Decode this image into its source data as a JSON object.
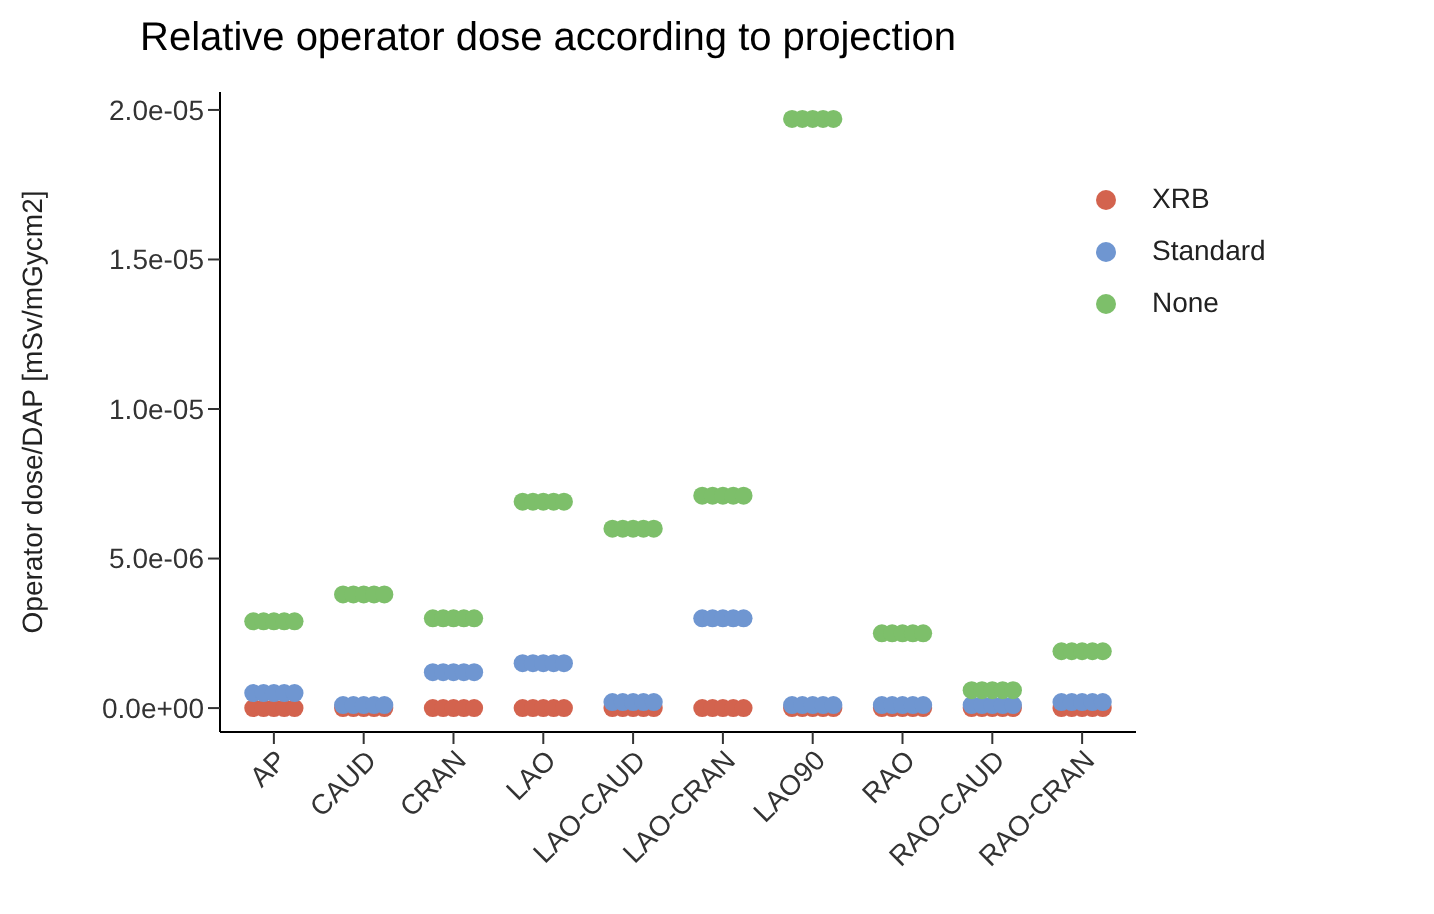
{
  "chart_data": {
    "type": "scatter",
    "title": "Relative operator dose according to projection",
    "ylabel": "Operator dose/DAP  [mSv/mGycm2]",
    "categories": [
      "AP",
      "CAUD",
      "CRAN",
      "LAO",
      "LAO-CAUD",
      "LAO-CRAN",
      "LAO90",
      "RAO",
      "RAO-CAUD",
      "RAO-CRAN"
    ],
    "ylim": [
      -8e-07,
      2.06e-05
    ],
    "yticks": [
      {
        "value": 0,
        "label": "0.0e+00"
      },
      {
        "value": 5e-06,
        "label": "5.0e-06"
      },
      {
        "value": 1e-05,
        "label": "1.0e-05"
      },
      {
        "value": 1.5e-05,
        "label": "1.5e-05"
      },
      {
        "value": 2e-05,
        "label": "2.0e-05"
      }
    ],
    "grid": false,
    "legend": "top right",
    "marker": "circle",
    "series": [
      {
        "name": "XRB",
        "color": "#d3634e",
        "x": [
          "AP",
          "AP",
          "AP",
          "AP",
          "AP",
          "CAUD",
          "CAUD",
          "CAUD",
          "CAUD",
          "CAUD",
          "CRAN",
          "CRAN",
          "CRAN",
          "CRAN",
          "CRAN",
          "LAO",
          "LAO",
          "LAO",
          "LAO",
          "LAO",
          "LAO-CAUD",
          "LAO-CAUD",
          "LAO-CAUD",
          "LAO-CAUD",
          "LAO-CAUD",
          "LAO-CRAN",
          "LAO-CRAN",
          "LAO-CRAN",
          "LAO-CRAN",
          "LAO-CRAN",
          "LAO90",
          "LAO90",
          "LAO90",
          "LAO90",
          "LAO90",
          "RAO",
          "RAO",
          "RAO",
          "RAO",
          "RAO",
          "RAO-CAUD",
          "RAO-CAUD",
          "RAO-CAUD",
          "RAO-CAUD",
          "RAO-CAUD",
          "RAO-CRAN",
          "RAO-CRAN",
          "RAO-CRAN",
          "RAO-CRAN",
          "RAO-CRAN"
        ],
        "values": [
          0,
          0,
          0,
          0,
          0,
          0,
          0,
          0,
          0,
          0,
          0,
          0,
          0,
          0,
          0,
          0,
          0,
          0,
          0,
          0,
          0,
          0,
          0,
          0,
          0,
          0,
          0,
          0,
          0,
          0,
          0,
          0,
          0,
          0,
          0,
          0,
          0,
          0,
          0,
          0,
          0,
          0,
          0,
          0,
          0,
          0,
          0,
          0,
          0,
          0
        ]
      },
      {
        "name": "Standard",
        "color": "#6f96d1",
        "x": [
          "AP",
          "AP",
          "AP",
          "AP",
          "AP",
          "CAUD",
          "CAUD",
          "CAUD",
          "CAUD",
          "CAUD",
          "CRAN",
          "CRAN",
          "CRAN",
          "CRAN",
          "CRAN",
          "LAO",
          "LAO",
          "LAO",
          "LAO",
          "LAO",
          "LAO-CAUD",
          "LAO-CAUD",
          "LAO-CAUD",
          "LAO-CAUD",
          "LAO-CAUD",
          "LAO-CRAN",
          "LAO-CRAN",
          "LAO-CRAN",
          "LAO-CRAN",
          "LAO-CRAN",
          "LAO90",
          "LAO90",
          "LAO90",
          "LAO90",
          "LAO90",
          "RAO",
          "RAO",
          "RAO",
          "RAO",
          "RAO",
          "RAO-CAUD",
          "RAO-CAUD",
          "RAO-CAUD",
          "RAO-CAUD",
          "RAO-CAUD",
          "RAO-CRAN",
          "RAO-CRAN",
          "RAO-CRAN",
          "RAO-CRAN",
          "RAO-CRAN"
        ],
        "values": [
          5e-07,
          5e-07,
          5e-07,
          5e-07,
          5e-07,
          1e-07,
          1e-07,
          1e-07,
          1e-07,
          1e-07,
          1.2e-06,
          1.2e-06,
          1.2e-06,
          1.2e-06,
          1.2e-06,
          1.5e-06,
          1.5e-06,
          1.5e-06,
          1.5e-06,
          1.5e-06,
          2e-07,
          2e-07,
          2e-07,
          2e-07,
          2e-07,
          3e-06,
          3e-06,
          3e-06,
          3e-06,
          3e-06,
          1e-07,
          1e-07,
          1e-07,
          1e-07,
          1e-07,
          1e-07,
          1e-07,
          1e-07,
          1e-07,
          1e-07,
          1e-07,
          1e-07,
          1e-07,
          1e-07,
          1e-07,
          2e-07,
          2e-07,
          2e-07,
          2e-07,
          2e-07
        ]
      },
      {
        "name": "None",
        "color": "#7dbf6a",
        "x": [
          "AP",
          "AP",
          "AP",
          "AP",
          "AP",
          "CAUD",
          "CAUD",
          "CAUD",
          "CAUD",
          "CAUD",
          "CRAN",
          "CRAN",
          "CRAN",
          "CRAN",
          "CRAN",
          "LAO",
          "LAO",
          "LAO",
          "LAO",
          "LAO",
          "LAO-CAUD",
          "LAO-CAUD",
          "LAO-CAUD",
          "LAO-CAUD",
          "LAO-CAUD",
          "LAO-CRAN",
          "LAO-CRAN",
          "LAO-CRAN",
          "LAO-CRAN",
          "LAO-CRAN",
          "LAO90",
          "LAO90",
          "LAO90",
          "LAO90",
          "LAO90",
          "RAO",
          "RAO",
          "RAO",
          "RAO",
          "RAO",
          "RAO-CAUD",
          "RAO-CAUD",
          "RAO-CAUD",
          "RAO-CAUD",
          "RAO-CAUD",
          "RAO-CRAN",
          "RAO-CRAN",
          "RAO-CRAN",
          "RAO-CRAN",
          "RAO-CRAN"
        ],
        "values": [
          2.9e-06,
          2.9e-06,
          2.9e-06,
          2.9e-06,
          2.9e-06,
          3.8e-06,
          3.8e-06,
          3.8e-06,
          3.8e-06,
          3.8e-06,
          3e-06,
          3e-06,
          3e-06,
          3e-06,
          3e-06,
          6.9e-06,
          6.9e-06,
          6.9e-06,
          6.9e-06,
          6.9e-06,
          6e-06,
          6e-06,
          6e-06,
          6e-06,
          6e-06,
          7.1e-06,
          7.1e-06,
          7.1e-06,
          7.1e-06,
          7.1e-06,
          1.97e-05,
          1.97e-05,
          1.97e-05,
          1.97e-05,
          1.97e-05,
          2.5e-06,
          2.5e-06,
          2.5e-06,
          2.5e-06,
          2.5e-06,
          6e-07,
          6e-07,
          6e-07,
          6e-07,
          6e-07,
          1.9e-06,
          1.9e-06,
          1.9e-06,
          1.9e-06,
          1.9e-06
        ]
      }
    ]
  }
}
